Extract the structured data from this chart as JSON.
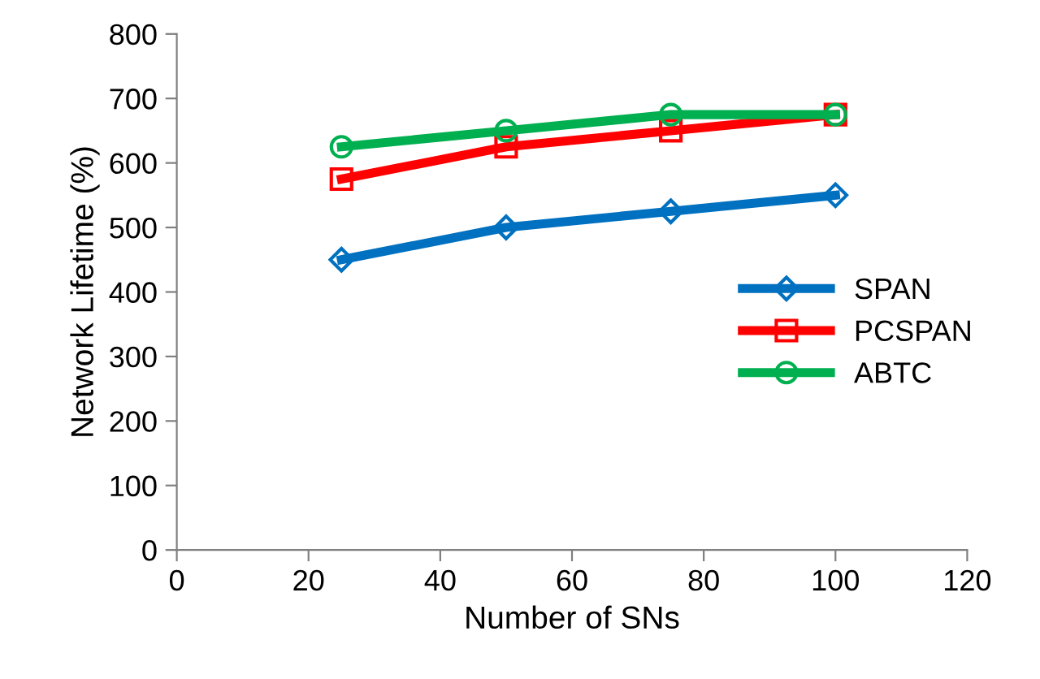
{
  "chart_data": {
    "type": "line",
    "xlabel": "Number of SNs",
    "ylabel": "Network Lifetime (%)",
    "x": [
      25,
      50,
      75,
      100
    ],
    "series": [
      {
        "name": "SPAN",
        "color": "#0070c0",
        "marker": "diamond",
        "values": [
          450,
          500,
          525,
          550
        ]
      },
      {
        "name": "PCSPAN",
        "color": "#ff0000",
        "marker": "square",
        "values": [
          575,
          625,
          650,
          675
        ]
      },
      {
        "name": "ABTC",
        "color": "#00b050",
        "marker": "circle",
        "values": [
          625,
          650,
          675,
          675
        ]
      }
    ],
    "xlim": [
      0,
      120
    ],
    "xticks": [
      0,
      20,
      40,
      60,
      80,
      100,
      120
    ],
    "ylim": [
      0,
      800
    ],
    "yticks": [
      0,
      100,
      200,
      300,
      400,
      500,
      600,
      700,
      800
    ],
    "grid": false,
    "legend": "right",
    "line_style": "solid"
  }
}
